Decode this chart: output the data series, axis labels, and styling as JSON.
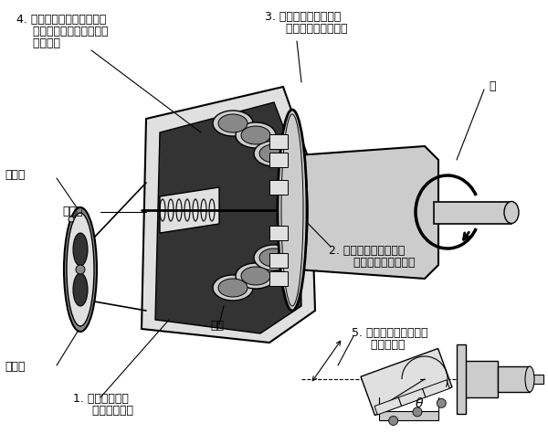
{
  "bg_color": "#ffffff",
  "figsize": [
    6.0,
    4.86
  ],
  "dpi": 100,
  "annotations": {
    "label4_line1": "4. 油液被柱塞孔带到出口并",
    "label4_line2": "  在柱塞被轴法兰推动退入",
    "label4_line3": "  时被挤出",
    "label3_line1": "3. 万向节保持对正使轴",
    "label3_line2": "  和缸体总是一起旋转",
    "label_zhou": "轴",
    "label_tongjinkou": "通进口",
    "label_peiliupan": "配流盘",
    "label2_line1": "2. 驱动轴法兰上的柱塞",
    "label2_line2": "   推力在轴上产生扭矩",
    "label_gangti": "缸体",
    "label_tongchukou": "通出口",
    "label1_line1": "1. 进口油液压力",
    "label1_line2": "  引起柱塞推力",
    "label5_line1": "5. 柱塞排量和扭矩能力",
    "label5_line2": "  取决于角度",
    "label_theta": "θ"
  },
  "colors": {
    "black": "#000000",
    "dark": "#1a1a1a",
    "mid_gray": "#888888",
    "light_gray": "#cccccc",
    "lighter_gray": "#e0e0e0",
    "white": "#ffffff",
    "very_dark": "#333333",
    "medium": "#aaaaaa"
  }
}
